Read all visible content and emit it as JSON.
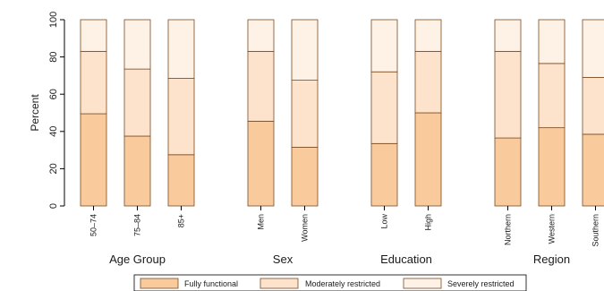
{
  "chart_data": {
    "type": "bar",
    "stacked": true,
    "ylabel": "Percent",
    "ylim": [
      0,
      100
    ],
    "yticks": [
      0,
      20,
      40,
      60,
      80,
      100
    ],
    "grid": false,
    "legend_position": "bottom",
    "colors": {
      "Fully functional": "#f9cb9c",
      "Moderately restricted": "#fde3cb",
      "Severely restricted": "#fef2e6",
      "outline": "#7a4a20"
    },
    "groups": [
      {
        "name": "Age Group",
        "categories": [
          "50–74",
          "75–84",
          "85+"
        ]
      },
      {
        "name": "Sex",
        "categories": [
          "Men",
          "Women"
        ]
      },
      {
        "name": "Education",
        "categories": [
          "Low",
          "High"
        ]
      },
      {
        "name": "Region",
        "categories": [
          "Northern",
          "Western",
          "Southern"
        ]
      }
    ],
    "categories": [
      "50–74",
      "75–84",
      "85+",
      "Men",
      "Women",
      "Low",
      "High",
      "Northern",
      "Western",
      "Southern"
    ],
    "series": [
      {
        "name": "Fully functional",
        "values": [
          49.5,
          37.5,
          27.5,
          45.5,
          31.5,
          33.5,
          50,
          36.5,
          42,
          38.5
        ]
      },
      {
        "name": "Moderately restricted",
        "values": [
          33.5,
          36,
          41,
          37.5,
          36,
          38.5,
          33,
          46.5,
          34.5,
          30.5
        ]
      },
      {
        "name": "Severely restricted",
        "values": [
          17,
          26.5,
          31.5,
          17,
          32.5,
          28,
          17,
          17,
          23.5,
          31
        ]
      }
    ]
  }
}
